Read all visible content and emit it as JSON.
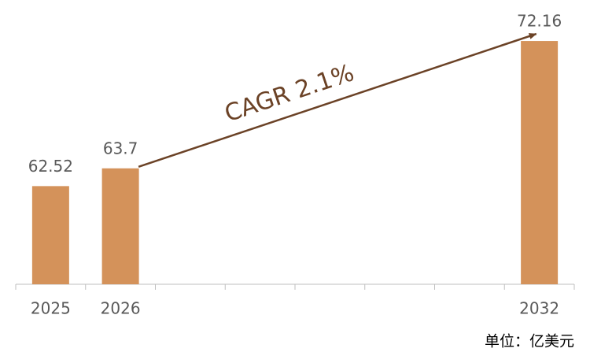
{
  "chart_data": {
    "type": "bar",
    "categories": [
      "2025",
      "2026",
      null,
      null,
      null,
      null,
      null,
      "2032"
    ],
    "values": [
      62.52,
      63.7,
      null,
      null,
      null,
      null,
      null,
      72.16
    ],
    "color": "#d4925a",
    "ylim": [
      56,
      73
    ],
    "annotation": "CAGR 2.1%",
    "unit_label": "单位：亿美元"
  }
}
